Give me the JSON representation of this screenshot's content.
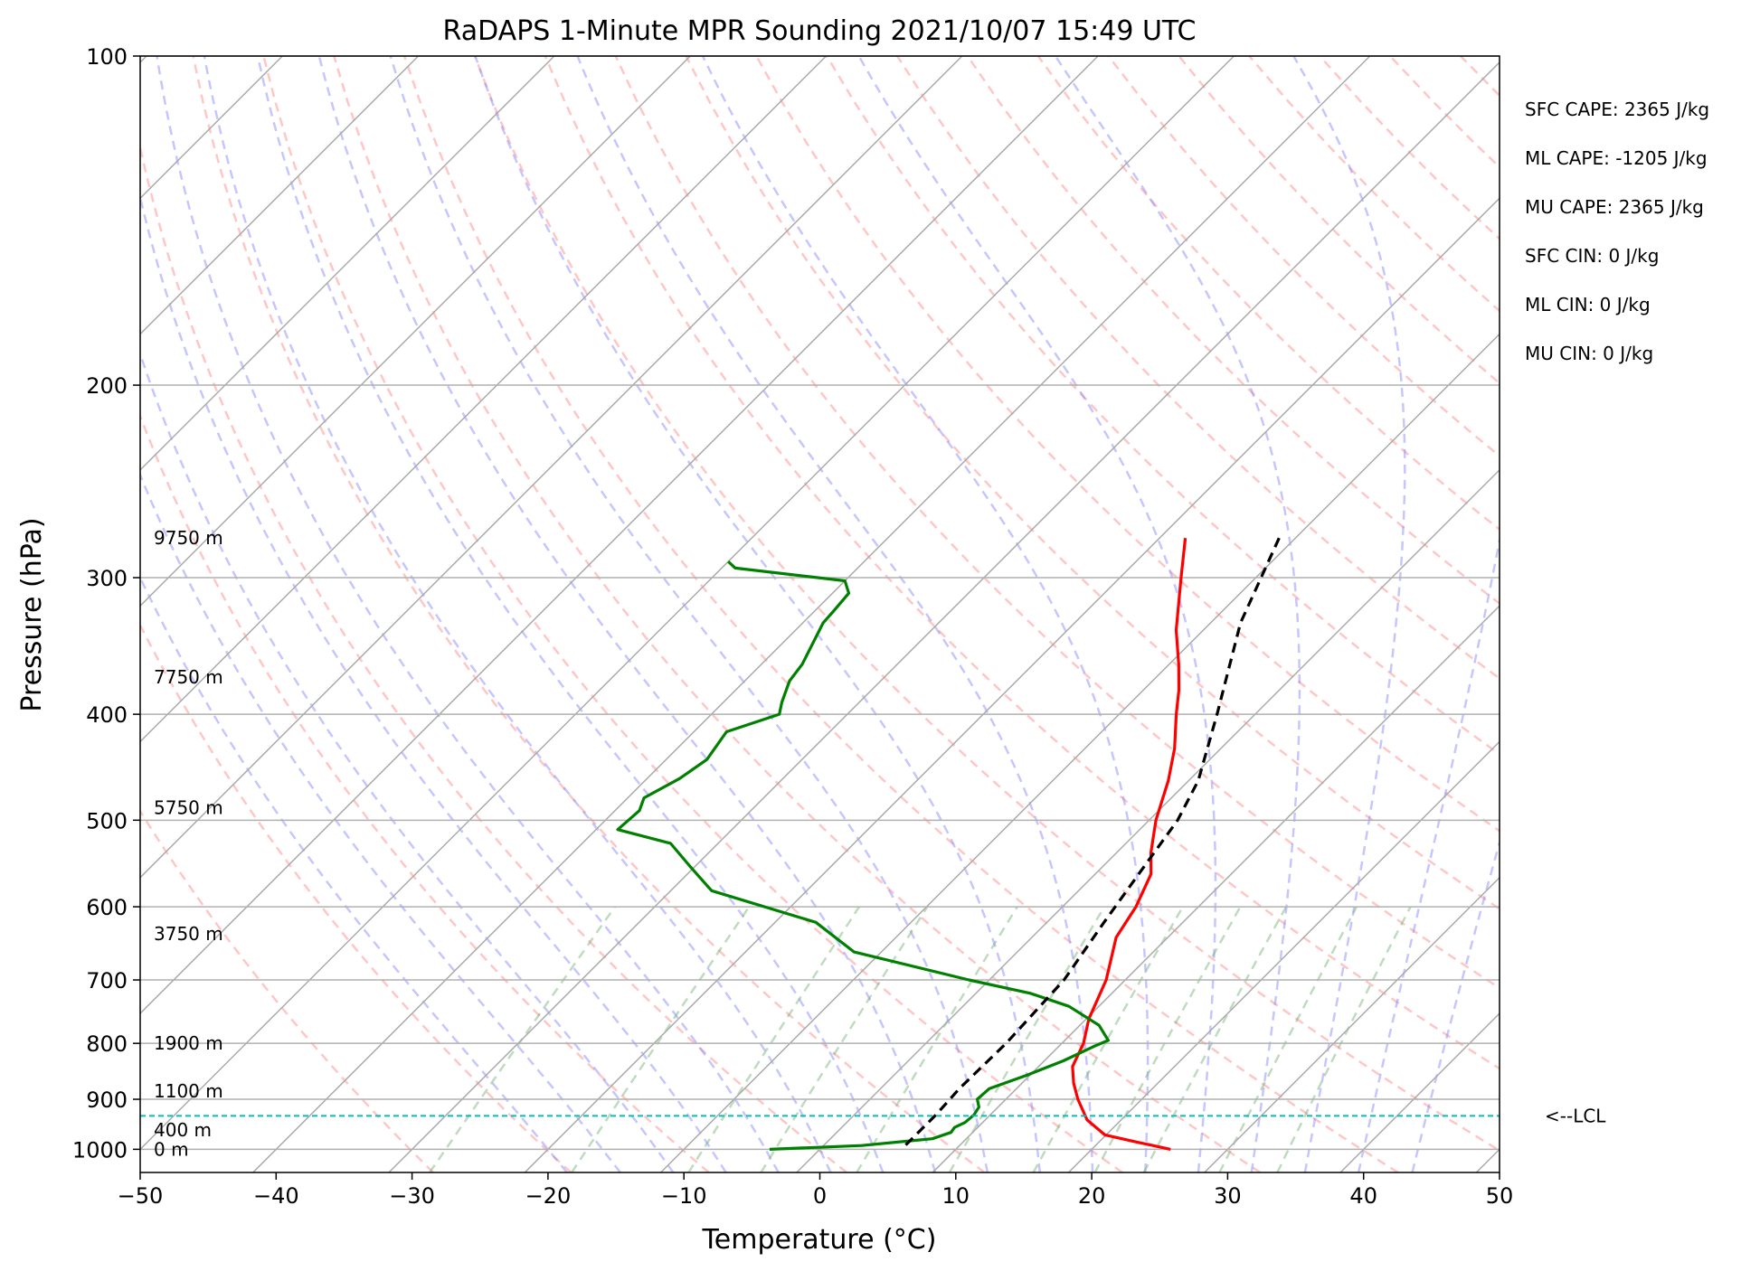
{
  "chart_data": {
    "type": "line",
    "title": "RaDAPS 1-Minute MPR Sounding 2021/10/07 15:49 UTC",
    "xlabel": "Temperature (°C)",
    "ylabel": "Pressure (hPa)",
    "xlim": [
      -50,
      50
    ],
    "ylim": [
      1050,
      100
    ],
    "y_scale": "log",
    "x_ticks": [
      "−50",
      "−40",
      "−30",
      "−20",
      "−10",
      "0",
      "10",
      "20",
      "30",
      "40",
      "50"
    ],
    "x_tick_values": [
      -50,
      -40,
      -30,
      -20,
      -10,
      0,
      10,
      20,
      30,
      40,
      50
    ],
    "y_ticks": [
      "100",
      "200",
      "300",
      "400",
      "500",
      "600",
      "700",
      "800",
      "900",
      "1000"
    ],
    "y_tick_values": [
      100,
      200,
      300,
      400,
      500,
      600,
      700,
      800,
      900,
      1000
    ],
    "grid": true,
    "skew": true,
    "series": [
      {
        "role": "temperature",
        "color": "#ff0000",
        "points": [
          [
            276,
            -18.1
          ],
          [
            300,
            -15.5
          ],
          [
            335,
            -12.0
          ],
          [
            360,
            -9.3
          ],
          [
            380,
            -7.4
          ],
          [
            400,
            -5.8
          ],
          [
            430,
            -3.4
          ],
          [
            460,
            -1.5
          ],
          [
            500,
            0.5
          ],
          [
            535,
            2.5
          ],
          [
            560,
            4.1
          ],
          [
            600,
            5.4
          ],
          [
            640,
            6.2
          ],
          [
            700,
            8.6
          ],
          [
            760,
            10.2
          ],
          [
            800,
            11.6
          ],
          [
            840,
            12.5
          ],
          [
            870,
            13.8
          ],
          [
            900,
            15.3
          ],
          [
            940,
            17.5
          ],
          [
            970,
            19.9
          ],
          [
            985,
            22.8
          ],
          [
            1000,
            25.8
          ]
        ]
      },
      {
        "role": "dewpoint",
        "color": "#008000",
        "points": [
          [
            290,
            -50.0
          ],
          [
            294,
            -49.0
          ],
          [
            302,
            -40.0
          ],
          [
            310,
            -38.8
          ],
          [
            322,
            -38.6
          ],
          [
            330,
            -38.5
          ],
          [
            360,
            -37.0
          ],
          [
            373,
            -36.7
          ],
          [
            390,
            -35.7
          ],
          [
            400,
            -35.0
          ],
          [
            415,
            -37.6
          ],
          [
            440,
            -37.0
          ],
          [
            458,
            -37.6
          ],
          [
            477,
            -38.8
          ],
          [
            490,
            -38.2
          ],
          [
            510,
            -38.4
          ],
          [
            525,
            -33.5
          ],
          [
            550,
            -30.5
          ],
          [
            580,
            -27.0
          ],
          [
            620,
            -17.0
          ],
          [
            660,
            -12.0
          ],
          [
            700,
            -1.5
          ],
          [
            720,
            4.0
          ],
          [
            740,
            7.8
          ],
          [
            770,
            11.4
          ],
          [
            795,
            13.2
          ],
          [
            805,
            12.6
          ],
          [
            830,
            11.4
          ],
          [
            855,
            9.8
          ],
          [
            880,
            8.0
          ],
          [
            900,
            7.9
          ],
          [
            915,
            8.6
          ],
          [
            930,
            8.8
          ],
          [
            945,
            8.7
          ],
          [
            955,
            8.3
          ],
          [
            965,
            8.4
          ],
          [
            978,
            7.5
          ],
          [
            992,
            2.8
          ],
          [
            1000,
            -3.7
          ]
        ]
      },
      {
        "role": "parcel",
        "color": "#000000",
        "points": [
          [
            276,
            -11.2
          ],
          [
            330,
            -7.8
          ],
          [
            400,
            -2.8
          ],
          [
            460,
            0.7
          ],
          [
            500,
            2.1
          ],
          [
            560,
            3.2
          ],
          [
            620,
            4.2
          ],
          [
            700,
            5.5
          ],
          [
            800,
            5.9
          ],
          [
            880,
            5.8
          ],
          [
            930,
            6.0
          ],
          [
            1000,
            6.0
          ]
        ]
      }
    ],
    "lcl": {
      "label": "<--LCL",
      "pressure": 932,
      "color": "#00bfbf"
    },
    "height_labels": [
      {
        "text": "9750 m",
        "pressure": 276
      },
      {
        "text": "7750 m",
        "pressure": 370
      },
      {
        "text": "5750 m",
        "pressure": 487
      },
      {
        "text": "3750 m",
        "pressure": 635
      },
      {
        "text": "1900 m",
        "pressure": 800
      },
      {
        "text": "1100 m",
        "pressure": 885
      },
      {
        "text": "400 m",
        "pressure": 960
      },
      {
        "text": "0 m",
        "pressure": 1000
      }
    ],
    "indices": [
      "SFC CAPE: 2365 J/kg",
      "ML CAPE: -1205 J/kg",
      "MU CAPE: 2365 J/kg",
      "SFC CIN: 0 J/kg",
      "ML CIN: 0 J/kg",
      "MU CIN: 0 J/kg"
    ],
    "colors": {
      "isotherm": "#aaaaaa",
      "dry_adiabat": "#ff8080",
      "moist_adiabat": "#8080ff",
      "mixing_ratio": "#70b070"
    }
  }
}
